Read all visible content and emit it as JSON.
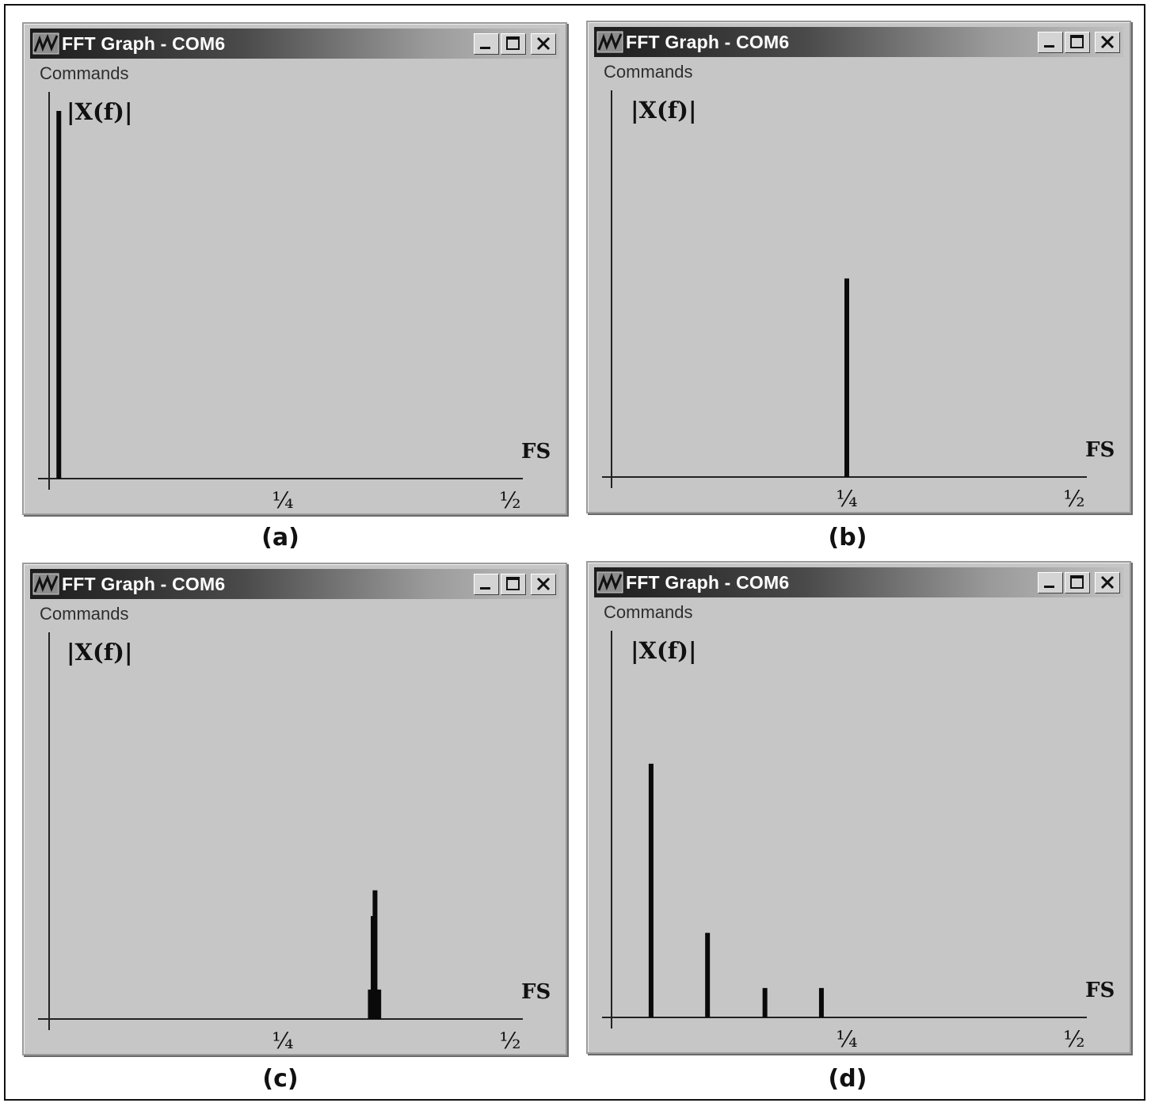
{
  "windows": [
    {
      "id": "a",
      "title": "FFT Graph - COM6",
      "menu": "Commands",
      "caption": "(a)",
      "chart_data": {
        "type": "bar",
        "ylabel": "|X(f)|",
        "xlabel": "FS",
        "x_ticks": [
          "¼",
          "½"
        ],
        "xlim": [
          0,
          0.5
        ],
        "ylim": [
          0,
          1
        ],
        "bars": [
          {
            "x": 0.012,
            "y": 1.0
          }
        ]
      }
    },
    {
      "id": "b",
      "title": "FFT Graph - COM6",
      "menu": "Commands",
      "caption": "(b)",
      "chart_data": {
        "type": "bar",
        "ylabel": "|X(f)|",
        "xlabel": "FS",
        "x_ticks": [
          "¼",
          "½"
        ],
        "xlim": [
          0,
          0.5
        ],
        "ylim": [
          0,
          1
        ],
        "bars": [
          {
            "x": 0.25,
            "y": 0.54
          }
        ]
      }
    },
    {
      "id": "c",
      "title": "FFT Graph - COM6",
      "menu": "Commands",
      "caption": "(c)",
      "chart_data": {
        "type": "bar",
        "ylabel": "|X(f)|",
        "xlabel": "FS",
        "x_ticks": [
          "¼",
          "½"
        ],
        "xlim": [
          0,
          0.5
        ],
        "ylim": [
          0,
          1
        ],
        "bars": [
          {
            "x": 0.343,
            "y": 0.08
          },
          {
            "x": 0.346,
            "y": 0.28
          },
          {
            "x": 0.348,
            "y": 0.35
          },
          {
            "x": 0.35,
            "y": 0.08
          },
          {
            "x": 0.352,
            "y": 0.08
          }
        ]
      }
    },
    {
      "id": "d",
      "title": "FFT Graph - COM6",
      "menu": "Commands",
      "caption": "(d)",
      "chart_data": {
        "type": "bar",
        "ylabel": "|X(f)|",
        "xlabel": "FS",
        "x_ticks": [
          "¼",
          "½"
        ],
        "xlim": [
          0,
          0.5
        ],
        "ylim": [
          0,
          1
        ],
        "bars": [
          {
            "x": 0.042,
            "y": 0.69
          },
          {
            "x": 0.102,
            "y": 0.23
          },
          {
            "x": 0.163,
            "y": 0.08
          },
          {
            "x": 0.223,
            "y": 0.08
          }
        ]
      }
    }
  ]
}
